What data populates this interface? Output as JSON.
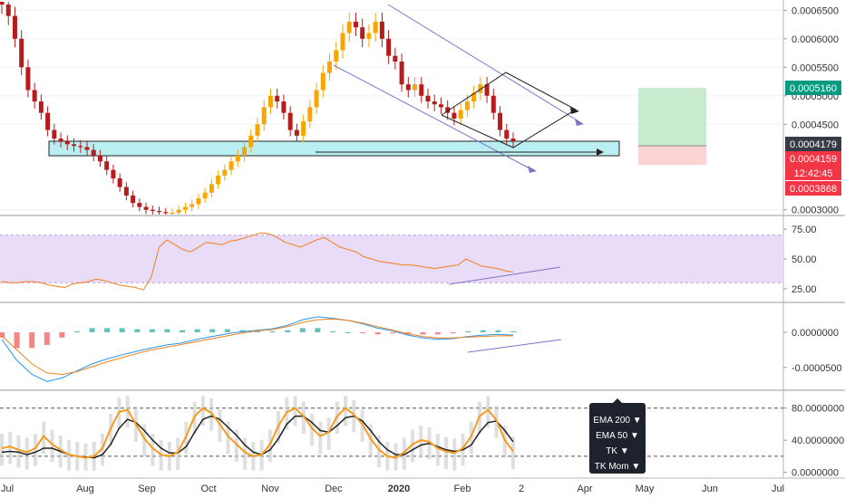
{
  "chart_data": [
    {
      "type": "candlestick",
      "title": "",
      "x_labels": [
        "Jul",
        "Aug",
        "Sep",
        "Oct",
        "Nov",
        "Dec",
        "2020",
        "Feb",
        "2",
        "Apr",
        "May",
        "Jun",
        "Jul"
      ],
      "y_ticks": [
        "0.0006500",
        "0.0006000",
        "0.0005500",
        "0.0005000",
        "0.0004500",
        "0.0003000"
      ],
      "ylim": [
        0.00029,
        0.000668
      ],
      "series": [
        {
          "name": "",
          "values": [
            0.00066,
            0.00064,
            0.0006,
            0.00055,
            0.00051,
            0.00049,
            0.00047,
            0.00044,
            0.000425,
            0.00042,
            0.000415,
            0.000412,
            0.00041,
            0.000405,
            0.000395,
            0.000385,
            0.00037,
            0.000355,
            0.00034,
            0.000325,
            0.000312,
            0.000305,
            0.0003,
            0.000298,
            0.000296,
            0.000295,
            0.000295,
            0.0003,
            0.000305,
            0.00031,
            0.00032,
            0.00033,
            0.000345,
            0.00036,
            0.00037,
            0.000385,
            0.000395,
            0.00041,
            0.00043,
            0.00045,
            0.00048,
            0.0005,
            0.00049,
            0.00047,
            0.00044,
            0.00043,
            0.000455,
            0.00048,
            0.00051,
            0.00054,
            0.00056,
            0.00058,
            0.00061,
            0.00063,
            0.00062,
            0.0006,
            0.00061,
            0.00063,
            0.0006,
            0.00057,
            0.00056,
            0.00052,
            0.00051,
            0.00052,
            0.0005,
            0.00049,
            0.000485,
            0.00048,
            0.00047,
            0.00046,
            0.000475,
            0.00049,
            0.000505,
            0.00052,
            0.0005,
            0.00047,
            0.00044,
            0.000425,
            0.00042
          ]
        }
      ],
      "price_tags": [
        {
          "value": "0.0005160",
          "color": "#089981"
        },
        {
          "value": "0.0004179",
          "color": "#363a45"
        },
        {
          "value": "0.0004159",
          "color": "#f23645"
        },
        {
          "value": "12:42:45",
          "color": "#f23645"
        },
        {
          "value": "0.0003868",
          "color": "#f23645"
        }
      ],
      "colors": {
        "up": "#f7a600",
        "down": "#b71c1c",
        "trendline": "#7e73c9",
        "zone": "#00bcd4",
        "long_profit": "#c8ebcf",
        "long_loss": "#fcd4d4"
      }
    },
    {
      "type": "line",
      "y_ticks": [
        "75.00",
        "50.00",
        "25.00"
      ],
      "ylim": [
        15,
        85
      ],
      "series": [
        {
          "name": "",
          "values": [
            31,
            30,
            30,
            31,
            31,
            30,
            28,
            27,
            26,
            29,
            30,
            31,
            33,
            32,
            30,
            28,
            27,
            26,
            24,
            35,
            60,
            66,
            62,
            58,
            56,
            60,
            64,
            63,
            62,
            65,
            66,
            68,
            70,
            72,
            71,
            68,
            64,
            62,
            60,
            63,
            66,
            68,
            64,
            60,
            58,
            56,
            52,
            50,
            48,
            47,
            46,
            45,
            45,
            44,
            43,
            42,
            43,
            44,
            45,
            50,
            47,
            44,
            43,
            42,
            40,
            39
          ]
        }
      ],
      "colors": {
        "line": "#f57f17",
        "band": "#e8dcf8"
      }
    },
    {
      "type": "line",
      "y_ticks": [
        "0.0000000",
        "-0.0000500"
      ],
      "ylim": [
        -8e-05,
        4e-05
      ],
      "series": [
        {
          "name": "",
          "values": [
            -1e-05,
            -4e-05,
            -6e-05,
            -7e-05,
            -6.5e-05,
            -5.5e-05,
            -4.5e-05,
            -3.8e-05,
            -3.2e-05,
            -2.7e-05,
            -2.2e-05,
            -1.8e-05,
            -1.5e-05,
            -1e-05,
            -6e-06,
            -2e-06,
            1e-06,
            3e-06,
            5e-06,
            1e-05,
            1.8e-05,
            2.2e-05,
            2e-05,
            1.7e-05,
            1.2e-05,
            6e-06,
            2e-06,
            -4e-06,
            -8e-06,
            -1e-05,
            -9e-06,
            -6e-06,
            -4e-06,
            -3e-06,
            -4e-06
          ]
        },
        {
          "name": "",
          "values": [
            -5e-06,
            -2.5e-05,
            -4.5e-05,
            -5.8e-05,
            -6e-05,
            -5.6e-05,
            -4.9e-05,
            -4.2e-05,
            -3.6e-05,
            -3e-05,
            -2.5e-05,
            -2.1e-05,
            -1.7e-05,
            -1.3e-05,
            -9e-06,
            -5e-06,
            -1e-06,
            2e-06,
            4e-06,
            8e-06,
            1.4e-05,
            1.8e-05,
            1.9e-05,
            1.7e-05,
            1.3e-05,
            8e-06,
            3e-06,
            -2e-06,
            -6e-06,
            -8e-06,
            -8e-06,
            -7e-06,
            -6e-06,
            -5e-06,
            -5e-06
          ]
        }
      ],
      "colors": {
        "macd": "#2196f3",
        "signal": "#f57f17",
        "hist_up": "#26a69a",
        "hist_down": "#ef5350"
      }
    },
    {
      "type": "line",
      "y_ticks": [
        "80.0000000",
        "40.0000000",
        "0.0000000"
      ],
      "ylim": [
        -5,
        100
      ],
      "series": [
        {
          "name": "",
          "values": [
            30,
            32,
            28,
            25,
            30,
            45,
            35,
            28,
            22,
            20,
            18,
            20,
            30,
            55,
            75,
            78,
            60,
            42,
            30,
            22,
            20,
            25,
            45,
            70,
            80,
            74,
            60,
            45,
            35,
            25,
            20,
            22,
            35,
            58,
            75,
            80,
            70,
            55,
            45,
            50,
            70,
            80,
            72,
            60,
            42,
            28,
            20,
            18,
            25,
            35,
            40,
            38,
            30,
            26,
            24,
            30,
            45,
            70,
            78,
            65,
            40,
            26
          ]
        },
        {
          "name": "",
          "values": [
            25,
            26,
            25,
            22,
            25,
            30,
            30,
            26,
            22,
            20,
            19,
            18,
            22,
            35,
            55,
            66,
            62,
            52,
            40,
            30,
            24,
            24,
            32,
            50,
            66,
            70,
            66,
            56,
            46,
            34,
            25,
            22,
            28,
            42,
            60,
            70,
            70,
            62,
            52,
            50,
            58,
            68,
            70,
            64,
            52,
            38,
            28,
            22,
            22,
            28,
            34,
            36,
            32,
            28,
            26,
            28,
            34,
            50,
            62,
            64,
            52,
            38
          ]
        }
      ],
      "colors": {
        "k": "#f59b1e",
        "d": "#222222",
        "hist": "#c9c9c9"
      }
    }
  ],
  "legend_menu": {
    "items": [
      "EMA 200 ▼",
      "EMA 50 ▼",
      "TK ▼",
      "TK Mom ▼"
    ]
  }
}
